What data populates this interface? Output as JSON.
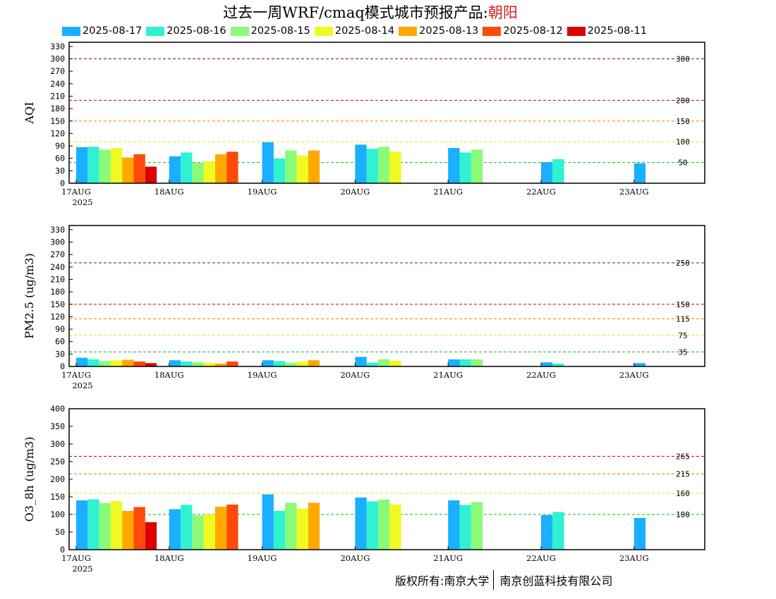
{
  "title": {
    "prefix": "过去一周WRF/cmaq模式城市预报产品:",
    "city": "朝阳"
  },
  "legend": [
    {
      "label": "2025-08-17",
      "color": "#1aafff"
    },
    {
      "label": "2025-08-16",
      "color": "#2ef2d2"
    },
    {
      "label": "2025-08-15",
      "color": "#8afa78"
    },
    {
      "label": "2025-08-14",
      "color": "#f0fa22"
    },
    {
      "label": "2025-08-13",
      "color": "#ffa800"
    },
    {
      "label": "2025-08-12",
      "color": "#ff4a0a"
    },
    {
      "label": "2025-08-11",
      "color": "#dc0000"
    }
  ],
  "footer": {
    "copyright": "版权所有:南京大学",
    "company": "南京创蓝科技有限公司"
  },
  "chart_data": [
    {
      "type": "bar",
      "ylabel": "AQI",
      "ylim": [
        0,
        340
      ],
      "yticks": [
        0,
        30,
        60,
        90,
        120,
        150,
        180,
        210,
        240,
        270,
        300,
        330
      ],
      "categories": [
        "17AUG",
        "18AUG",
        "19AUG",
        "20AUG",
        "21AUG",
        "22AUG",
        "23AUG"
      ],
      "first_year": "2025",
      "series": [
        {
          "name": "2025-08-17",
          "values": [
            87,
            65,
            99,
            93,
            85,
            51,
            48
          ]
        },
        {
          "name": "2025-08-16",
          "values": [
            88,
            74,
            60,
            83,
            74,
            58,
            null
          ]
        },
        {
          "name": "2025-08-15",
          "values": [
            81,
            49,
            79,
            88,
            81,
            null,
            null
          ]
        },
        {
          "name": "2025-08-14",
          "values": [
            85,
            53,
            67,
            76,
            null,
            null,
            null
          ]
        },
        {
          "name": "2025-08-13",
          "values": [
            62,
            70,
            79,
            null,
            null,
            null,
            null
          ]
        },
        {
          "name": "2025-08-12",
          "values": [
            70,
            76,
            null,
            null,
            null,
            null,
            null
          ]
        },
        {
          "name": "2025-08-11",
          "values": [
            40,
            null,
            null,
            null,
            null,
            null,
            null
          ]
        }
      ],
      "reference_lines": [
        {
          "value": 300,
          "label": "300",
          "color": "#8b0a3a"
        },
        {
          "value": 200,
          "label": "200",
          "color": "#c80000"
        },
        {
          "value": 150,
          "label": "150",
          "color": "#ff7a00"
        },
        {
          "value": 100,
          "label": "100",
          "color": "#e6e600"
        },
        {
          "value": 50,
          "label": "50",
          "color": "#00c000"
        }
      ]
    },
    {
      "type": "bar",
      "ylabel": "PM2.5 (ug/m3)",
      "ylim": [
        0,
        340
      ],
      "yticks": [
        0,
        30,
        60,
        90,
        120,
        150,
        180,
        210,
        240,
        270,
        300,
        330
      ],
      "categories": [
        "17AUG",
        "18AUG",
        "19AUG",
        "20AUG",
        "21AUG",
        "22AUG",
        "23AUG"
      ],
      "first_year": "2025",
      "series": [
        {
          "name": "2025-08-17",
          "values": [
            21,
            15,
            15,
            23,
            17,
            10,
            8
          ]
        },
        {
          "name": "2025-08-16",
          "values": [
            17,
            12,
            13,
            9,
            17,
            7,
            null
          ]
        },
        {
          "name": "2025-08-15",
          "values": [
            13,
            10,
            9,
            17,
            17,
            null,
            null
          ]
        },
        {
          "name": "2025-08-14",
          "values": [
            15,
            9,
            12,
            14,
            null,
            null,
            null
          ]
        },
        {
          "name": "2025-08-13",
          "values": [
            16,
            7,
            15,
            null,
            null,
            null,
            null
          ]
        },
        {
          "name": "2025-08-12",
          "values": [
            12,
            12,
            null,
            null,
            null,
            null,
            null
          ]
        },
        {
          "name": "2025-08-11",
          "values": [
            8,
            null,
            null,
            null,
            null,
            null,
            null
          ]
        }
      ],
      "reference_lines": [
        {
          "value": 250,
          "label": "250",
          "color": "#8b0a3a"
        },
        {
          "value": 150,
          "label": "150",
          "color": "#c80000"
        },
        {
          "value": 115,
          "label": "115",
          "color": "#ff7a00"
        },
        {
          "value": 75,
          "label": "75",
          "color": "#e6e600"
        },
        {
          "value": 35,
          "label": "35",
          "color": "#00c000"
        }
      ]
    },
    {
      "type": "bar",
      "ylabel": "O3_8h (ug/m3)",
      "ylim": [
        0,
        400
      ],
      "yticks": [
        0,
        50,
        100,
        150,
        200,
        250,
        300,
        350,
        400
      ],
      "categories": [
        "17AUG",
        "18AUG",
        "19AUG",
        "20AUG",
        "21AUG",
        "22AUG",
        "23AUG"
      ],
      "first_year": "2025",
      "series": [
        {
          "name": "2025-08-17",
          "values": [
            140,
            115,
            157,
            148,
            140,
            98,
            90
          ]
        },
        {
          "name": "2025-08-16",
          "values": [
            143,
            127,
            110,
            137,
            127,
            107,
            null
          ]
        },
        {
          "name": "2025-08-15",
          "values": [
            132,
            97,
            133,
            142,
            135,
            null,
            null
          ]
        },
        {
          "name": "2025-08-14",
          "values": [
            138,
            100,
            117,
            128,
            null,
            null,
            null
          ]
        },
        {
          "name": "2025-08-13",
          "values": [
            110,
            122,
            133,
            null,
            null,
            null,
            null
          ]
        },
        {
          "name": "2025-08-12",
          "values": [
            121,
            128,
            null,
            null,
            null,
            null,
            null
          ]
        },
        {
          "name": "2025-08-11",
          "values": [
            78,
            null,
            null,
            null,
            null,
            null,
            null
          ]
        }
      ],
      "reference_lines": [
        {
          "value": 265,
          "label": "265",
          "color": "#c80000"
        },
        {
          "value": 215,
          "label": "215",
          "color": "#ff7a00"
        },
        {
          "value": 160,
          "label": "160",
          "color": "#e6e600"
        },
        {
          "value": 100,
          "label": "100",
          "color": "#00c000"
        }
      ]
    }
  ]
}
